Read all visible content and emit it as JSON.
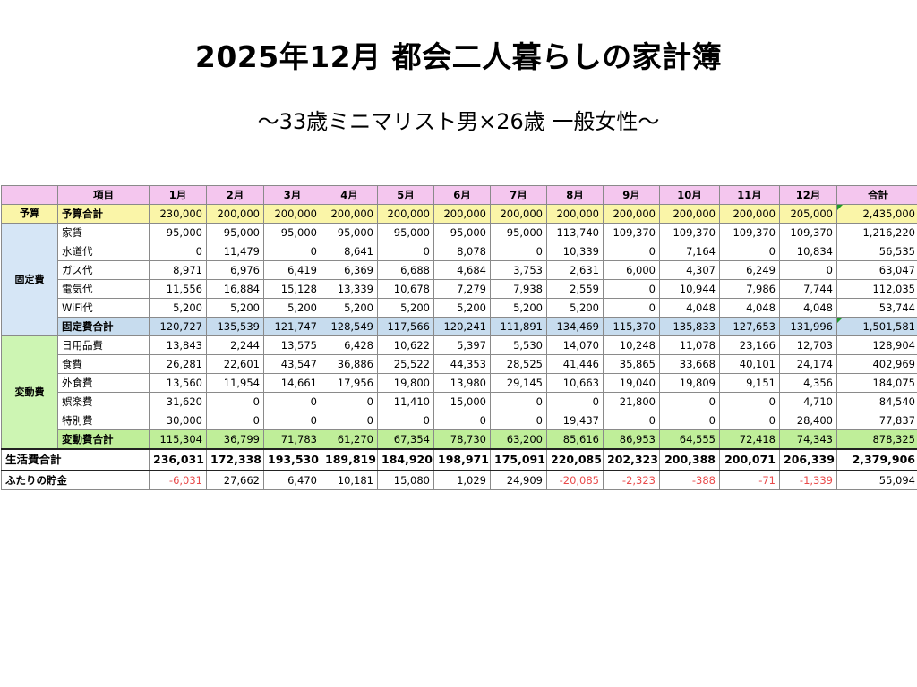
{
  "title": "2025年12月 都会二人暮らしの家計簿",
  "subtitle": "〜33歳ミニマリスト男×26歳 一般女性〜",
  "colors": {
    "header_bg": "#f4c6ee",
    "budget_bg": "#faf5a8",
    "fixed_bg": "#c7dcee",
    "variable_bg": "#bfee99",
    "negative_text": "#e84a4a"
  },
  "table": {
    "header": {
      "item": "項目",
      "months": [
        "1月",
        "2月",
        "3月",
        "4月",
        "5月",
        "6月",
        "7月",
        "8月",
        "9月",
        "10月",
        "11月",
        "12月"
      ],
      "total": "合計"
    },
    "budget": {
      "section": "予算",
      "label": "予算合計",
      "values": [
        "230,000",
        "200,000",
        "200,000",
        "200,000",
        "200,000",
        "200,000",
        "200,000",
        "200,000",
        "200,000",
        "200,000",
        "200,000",
        "205,000"
      ],
      "total": "2,435,000"
    },
    "fixed": {
      "section": "固定費",
      "rows": [
        {
          "label": "家賃",
          "values": [
            "95,000",
            "95,000",
            "95,000",
            "95,000",
            "95,000",
            "95,000",
            "95,000",
            "113,740",
            "109,370",
            "109,370",
            "109,370",
            "109,370"
          ],
          "total": "1,216,220"
        },
        {
          "label": "水道代",
          "values": [
            "0",
            "11,479",
            "0",
            "8,641",
            "0",
            "8,078",
            "0",
            "10,339",
            "0",
            "7,164",
            "0",
            "10,834"
          ],
          "total": "56,535"
        },
        {
          "label": "ガス代",
          "values": [
            "8,971",
            "6,976",
            "6,419",
            "6,369",
            "6,688",
            "4,684",
            "3,753",
            "2,631",
            "6,000",
            "4,307",
            "6,249",
            "0"
          ],
          "total": "63,047"
        },
        {
          "label": "電気代",
          "values": [
            "11,556",
            "16,884",
            "15,128",
            "13,339",
            "10,678",
            "7,279",
            "7,938",
            "2,559",
            "0",
            "10,944",
            "7,986",
            "7,744"
          ],
          "total": "112,035"
        },
        {
          "label": "WiFi代",
          "values": [
            "5,200",
            "5,200",
            "5,200",
            "5,200",
            "5,200",
            "5,200",
            "5,200",
            "5,200",
            "0",
            "4,048",
            "4,048",
            "4,048"
          ],
          "total": "53,744"
        }
      ],
      "total_label": "固定費合計",
      "total_values": [
        "120,727",
        "135,539",
        "121,747",
        "128,549",
        "117,566",
        "120,241",
        "111,891",
        "134,469",
        "115,370",
        "135,833",
        "127,653",
        "131,996"
      ],
      "total_sum": "1,501,581"
    },
    "variable": {
      "section": "変動費",
      "rows": [
        {
          "label": "日用品費",
          "values": [
            "13,843",
            "2,244",
            "13,575",
            "6,428",
            "10,622",
            "5,397",
            "5,530",
            "14,070",
            "10,248",
            "11,078",
            "23,166",
            "12,703"
          ],
          "total": "128,904"
        },
        {
          "label": "食費",
          "values": [
            "26,281",
            "22,601",
            "43,547",
            "36,886",
            "25,522",
            "44,353",
            "28,525",
            "41,446",
            "35,865",
            "33,668",
            "40,101",
            "24,174"
          ],
          "total": "402,969"
        },
        {
          "label": "外食費",
          "values": [
            "13,560",
            "11,954",
            "14,661",
            "17,956",
            "19,800",
            "13,980",
            "29,145",
            "10,663",
            "19,040",
            "19,809",
            "9,151",
            "4,356"
          ],
          "total": "184,075"
        },
        {
          "label": "娯楽費",
          "values": [
            "31,620",
            "0",
            "0",
            "0",
            "11,410",
            "15,000",
            "0",
            "0",
            "21,800",
            "0",
            "0",
            "4,710"
          ],
          "total": "84,540"
        },
        {
          "label": "特別費",
          "values": [
            "30,000",
            "0",
            "0",
            "0",
            "0",
            "0",
            "0",
            "19,437",
            "0",
            "0",
            "0",
            "28,400"
          ],
          "total": "77,837"
        }
      ],
      "total_label": "変動費合計",
      "total_values": [
        "115,304",
        "36,799",
        "71,783",
        "61,270",
        "67,354",
        "78,730",
        "63,200",
        "85,616",
        "86,953",
        "64,555",
        "72,418",
        "74,343"
      ],
      "total_sum": "878,325"
    },
    "living": {
      "label": "生活費合計",
      "values": [
        "236,031",
        "172,338",
        "193,530",
        "189,819",
        "184,920",
        "198,971",
        "175,091",
        "220,085",
        "202,323",
        "200,388",
        "200,071",
        "206,339"
      ],
      "total": "2,379,906"
    },
    "savings": {
      "label": "ふたりの貯金",
      "values": [
        "-6,031",
        "27,662",
        "6,470",
        "10,181",
        "15,080",
        "1,029",
        "24,909",
        "-20,085",
        "-2,323",
        "-388",
        "-71",
        "-1,339"
      ],
      "negative": [
        true,
        false,
        false,
        false,
        false,
        false,
        false,
        true,
        true,
        true,
        true,
        true
      ],
      "total": "55,094"
    }
  }
}
